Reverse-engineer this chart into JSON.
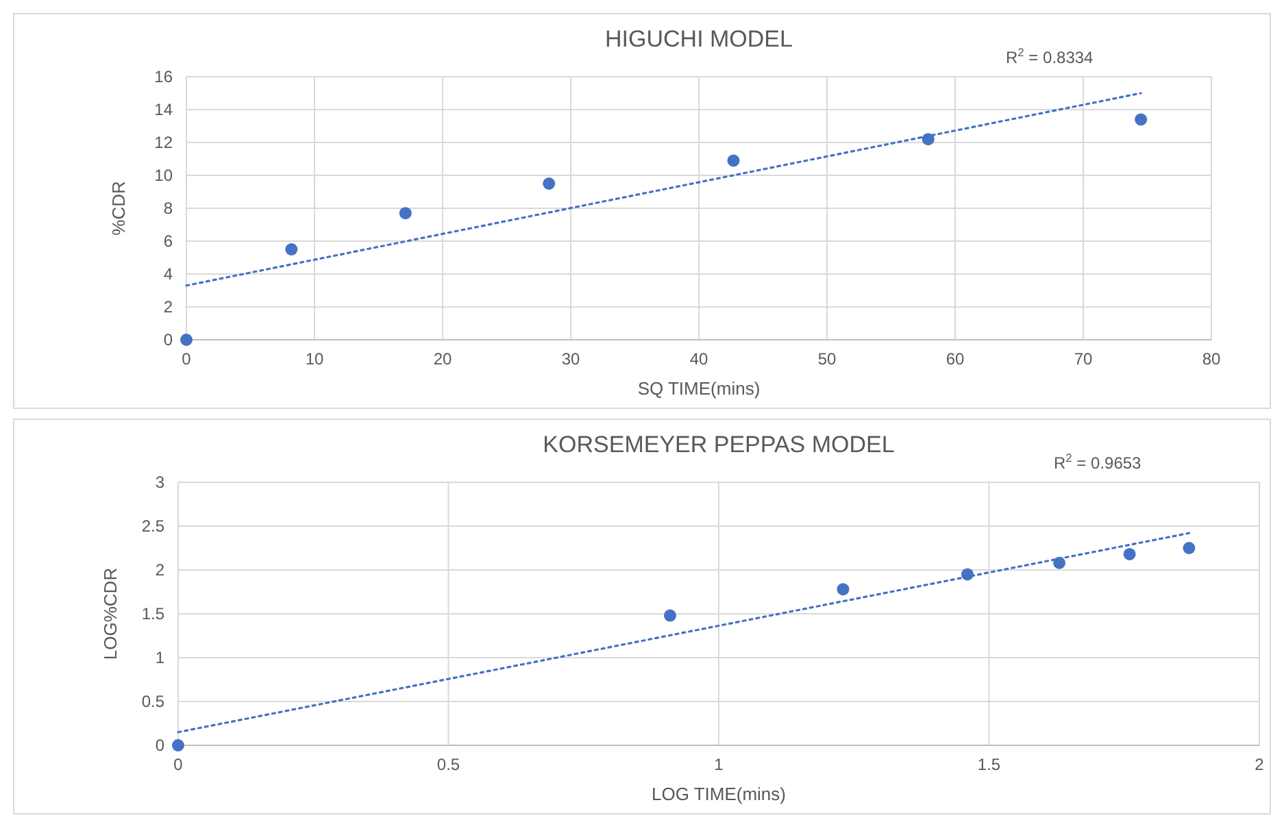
{
  "chart_data": [
    {
      "type": "scatter",
      "title": "HIGUCHI MODEL",
      "xlabel": "SQ TIME(mins)",
      "ylabel": "%CDR",
      "annotations": [
        "R$^{2}$ = 0.8334"
      ],
      "xlim": [
        0,
        80
      ],
      "xticks": [
        0,
        10,
        20,
        30,
        40,
        50,
        60,
        70,
        80
      ],
      "ylim": [
        0,
        16
      ],
      "yticks": [
        0,
        2,
        4,
        6,
        8,
        10,
        12,
        14,
        16
      ],
      "grid": true,
      "series": [
        {
          "color": "#4472c4",
          "marker": "circle",
          "x": [
            0,
            8.2,
            17.1,
            28.3,
            42.7,
            57.9,
            74.5
          ],
          "values": [
            0,
            5.5,
            7.7,
            9.5,
            10.9,
            12.2,
            13.4
          ]
        },
        {
          "type": "line",
          "color": "#4472c4",
          "line_style": "dotted",
          "x": [
            0,
            74.5
          ],
          "values": [
            3.3,
            15
          ]
        }
      ]
    },
    {
      "type": "scatter",
      "title": "KORSEMEYER PEPPAS MODEL",
      "xlabel": "LOG TIME(mins)",
      "ylabel": "LOG%CDR",
      "annotations": [
        "R$^{2}$ = 0.9653"
      ],
      "xlim": [
        0,
        2
      ],
      "xticks": [
        0,
        0.5,
        1,
        1.5,
        2
      ],
      "ylim": [
        0,
        3
      ],
      "yticks": [
        0,
        0.5,
        1,
        1.5,
        2,
        2.5,
        3
      ],
      "grid": true,
      "series": [
        {
          "color": "#4472c4",
          "marker": "circle",
          "x": [
            0,
            0.91,
            1.23,
            1.46,
            1.63,
            1.76,
            1.87
          ],
          "values": [
            0,
            1.48,
            1.78,
            1.95,
            2.08,
            2.18,
            2.25
          ]
        },
        {
          "type": "line",
          "color": "#4472c4",
          "line_style": "dotted",
          "x": [
            0,
            1.87
          ],
          "values": [
            0.15,
            2.42
          ]
        }
      ]
    }
  ]
}
